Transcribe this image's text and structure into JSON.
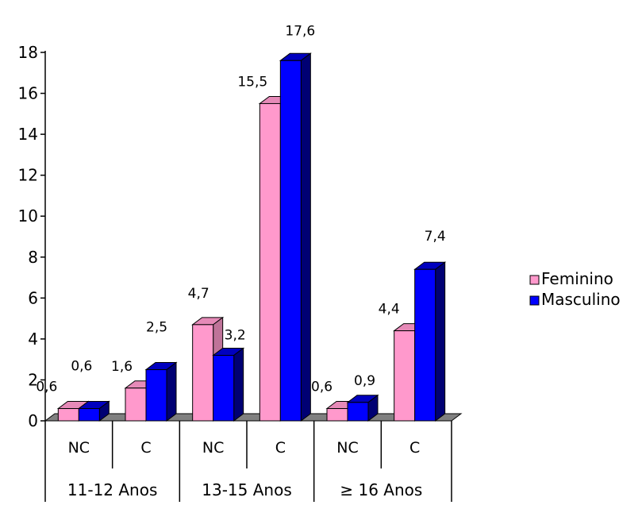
{
  "chart_data": {
    "type": "bar",
    "title": "",
    "xlabel": "",
    "ylabel": "",
    "ylim": [
      0,
      18
    ],
    "yticks": [
      0,
      2,
      4,
      6,
      8,
      10,
      12,
      14,
      16,
      18
    ],
    "grid": false,
    "legend_position": "right",
    "categories": [
      "NC",
      "C",
      "NC",
      "C",
      "NC",
      "C"
    ],
    "groups": [
      {
        "label": "11-12 Anos",
        "span": 2
      },
      {
        "label": "13-15 Anos",
        "span": 2
      },
      {
        "label": "≥ 16 Anos",
        "span": 2
      }
    ],
    "series": [
      {
        "name": "Feminino",
        "color": "#ff99cc",
        "values": [
          0.6,
          1.6,
          4.7,
          15.5,
          0.6,
          4.4
        ],
        "labels": [
          "0,6",
          "1,6",
          "4,7",
          "15,5",
          "0,6",
          "4,4"
        ]
      },
      {
        "name": "Masculino",
        "color": "#0000ff",
        "values": [
          0.6,
          2.5,
          3.2,
          17.6,
          0.9,
          7.4
        ],
        "labels": [
          "0,6",
          "2,5",
          "3,2",
          "17,6",
          "0,9",
          "7,4"
        ]
      }
    ]
  }
}
